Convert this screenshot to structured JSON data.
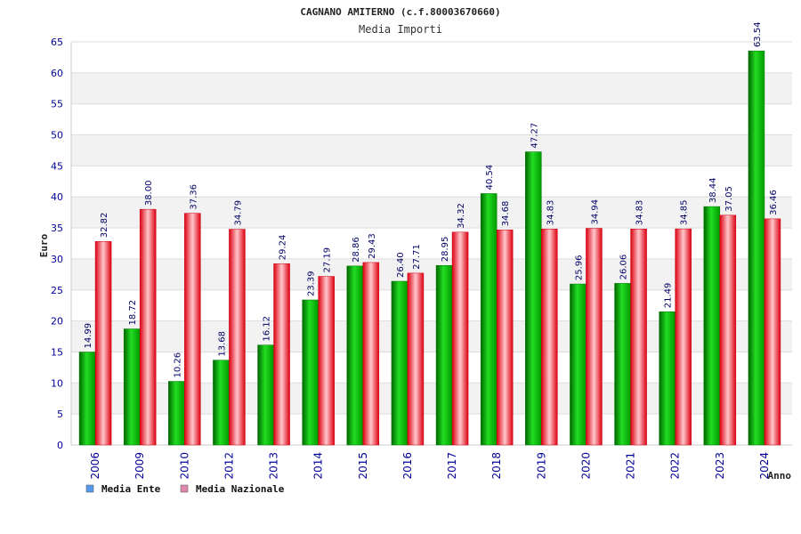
{
  "chart_data": {
    "type": "bar",
    "title": "CAGNANO AMITERNO (c.f.80003670660)",
    "subtitle": "Media Importi",
    "xlabel": "Anno",
    "ylabel": "Euro",
    "ylim": [
      0,
      65
    ],
    "yticks": [
      "0",
      "5",
      "10",
      "15",
      "20",
      "25",
      "30",
      "35",
      "40",
      "45",
      "50",
      "55",
      "60",
      "65"
    ],
    "grid": true,
    "legend_position": "bottom-left",
    "categories": [
      "2006",
      "2009",
      "2010",
      "2012",
      "2013",
      "2014",
      "2015",
      "2016",
      "2017",
      "2018",
      "2019",
      "2020",
      "2021",
      "2022",
      "2023",
      "2024"
    ],
    "series": [
      {
        "name": "Media Ente",
        "color": "#00aa00",
        "legend_color": "#5599ee",
        "values": [
          14.99,
          18.72,
          10.26,
          13.68,
          16.12,
          23.39,
          28.86,
          26.4,
          28.95,
          40.54,
          47.27,
          25.96,
          26.06,
          21.49,
          38.44,
          63.54
        ],
        "labels": [
          "14.99",
          "18.72",
          "10.26",
          "13.68",
          "16.12",
          "23.39",
          "28.86",
          "26.40",
          "28.95",
          "40.54",
          "47.27",
          "25.96",
          "26.06",
          "21.49",
          "38.44",
          "63.54"
        ]
      },
      {
        "name": "Media Nazionale",
        "color": "#ee1122",
        "legend_color": "#dd88aa",
        "values": [
          32.82,
          38.0,
          37.36,
          34.79,
          29.24,
          27.19,
          29.43,
          27.71,
          34.32,
          34.68,
          34.83,
          34.94,
          34.83,
          34.85,
          37.05,
          36.46
        ],
        "labels": [
          "32.82",
          "38.00",
          "37.36",
          "34.79",
          "29.24",
          "27.19",
          "29.43",
          "27.71",
          "34.32",
          "34.68",
          "34.83",
          "34.94",
          "34.83",
          "34.85",
          "37.05",
          "36.46"
        ]
      }
    ]
  }
}
